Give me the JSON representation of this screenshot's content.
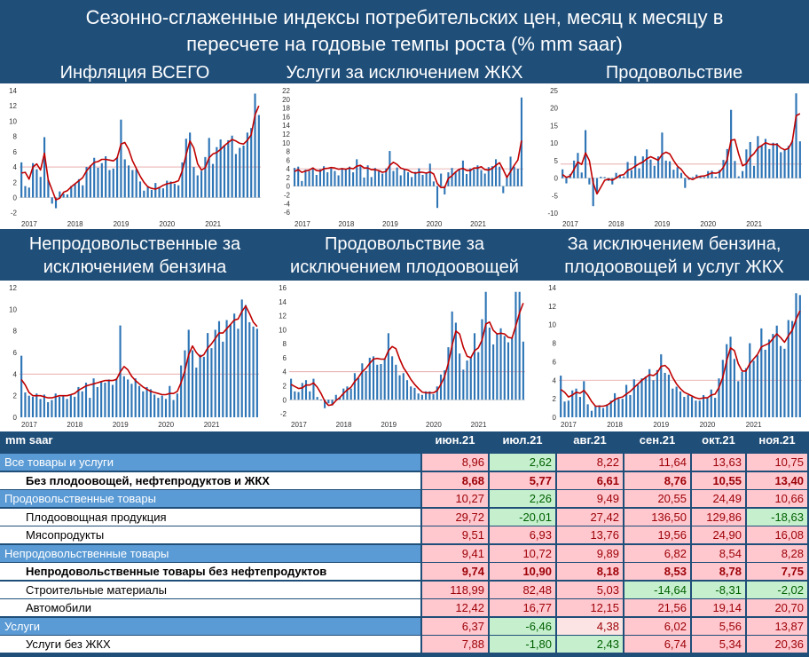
{
  "header": {
    "line1": "Сезонно-сглаженные индексы потребительских цен, месяц к месяцу в",
    "line2": "пересчете на годовые темпы роста (% mm saar)"
  },
  "colors": {
    "bar": "#2e75b6",
    "line": "#c00000",
    "ref": "#e6a0a0",
    "band": "#1f4e79"
  },
  "chart_data": [
    {
      "type": "bar",
      "title": "Инфляция ВСЕГО",
      "x_start": "2017-01",
      "xticks": [
        "2017",
        "2018",
        "2019",
        "2020",
        "2021"
      ],
      "yticks": [
        -2,
        0,
        2,
        4,
        6,
        8,
        10,
        12,
        14
      ],
      "ylim": [
        -2.5,
        14
      ],
      "reference": 4,
      "values": [
        4.6,
        1.5,
        1.3,
        4.5,
        3.7,
        2.7,
        7.9,
        2.3,
        -0.8,
        -1.4,
        0.8,
        0.5,
        0.4,
        1.5,
        1.8,
        2.4,
        1.6,
        4.0,
        4.2,
        5.2,
        3.9,
        4.5,
        5.4,
        3.6,
        3.8,
        5.3,
        10.2,
        5.0,
        4.2,
        3.6,
        3.7,
        2.1,
        0.9,
        1.5,
        1.0,
        1.9,
        1.4,
        1.2,
        2.2,
        2.1,
        1.8,
        1.6,
        4.6,
        7.7,
        8.5,
        4.0,
        2.9,
        3.5,
        5.3,
        7.8,
        4.4,
        6.6,
        7.6,
        6.8,
        7.5,
        8.1,
        5.7,
        6.5,
        6.8,
        8.5,
        9.1,
        13.6,
        10.8
      ],
      "smoothed": [
        3.2,
        3.3,
        2.4,
        4.0,
        4.4,
        3.6,
        5.8,
        2.3,
        1.0,
        -0.3,
        -0.1,
        0.7,
        0.9,
        1.4,
        1.8,
        2.2,
        2.6,
        3.5,
        4.1,
        4.6,
        4.7,
        5.0,
        5.0,
        4.9,
        4.8,
        5.2,
        7.0,
        7.2,
        6.3,
        4.8,
        3.8,
        2.8,
        2.0,
        1.4,
        1.2,
        1.1,
        1.3,
        1.6,
        1.8,
        1.9,
        2.0,
        2.2,
        3.5,
        5.6,
        7.4,
        6.5,
        4.4,
        3.6,
        3.9,
        5.2,
        5.7,
        5.9,
        6.3,
        6.8,
        7.2,
        7.6,
        7.4,
        7.1,
        7.0,
        7.5,
        8.2,
        10.8,
        12.0
      ]
    },
    {
      "type": "bar",
      "title": "Услуги за исключением ЖКХ",
      "x_start": "2017-01",
      "xticks": [
        "2017",
        "2018",
        "2019",
        "2020",
        "2021"
      ],
      "yticks": [
        -6,
        -4,
        -2,
        0,
        2,
        4,
        6,
        8,
        10,
        12,
        14,
        16,
        18,
        20,
        22
      ],
      "ylim": [
        -7,
        22
      ],
      "reference": 4,
      "values": [
        4.2,
        4.5,
        1.2,
        3.8,
        3.5,
        4.3,
        2.6,
        3.9,
        4.6,
        3.2,
        4.1,
        3.5,
        2.5,
        4.2,
        3.9,
        4.5,
        3.2,
        6.2,
        4.6,
        2.0,
        4.8,
        2.1,
        4.2,
        3.4,
        2.9,
        4.1,
        8.1,
        3.5,
        4.3,
        2.5,
        4.0,
        3.2,
        2.1,
        3.3,
        4.1,
        2.6,
        3.1,
        5.2,
        1.1,
        -5.0,
        2.9,
        -1.9,
        3.2,
        4.2,
        3.2,
        4.0,
        5.9,
        2.8,
        4.1,
        3.9,
        4.8,
        3.7,
        2.9,
        4.4,
        4.6,
        6.2,
        4.5,
        -1.6,
        2.5,
        6.8,
        4.5,
        4.0,
        20.4
      ],
      "smoothed": [
        3.4,
        3.8,
        3.2,
        3.5,
        3.7,
        4.2,
        3.6,
        3.5,
        4.0,
        4.1,
        4.3,
        4.2,
        3.9,
        4.0,
        3.9,
        4.2,
        4.0,
        4.6,
        4.8,
        4.2,
        4.2,
        3.8,
        3.8,
        3.6,
        3.2,
        3.4,
        4.8,
        5.5,
        5.0,
        4.2,
        3.9,
        3.7,
        3.2,
        3.0,
        3.2,
        3.2,
        3.0,
        3.3,
        2.8,
        0.6,
        -0.3,
        -0.3,
        1.8,
        2.4,
        3.3,
        3.9,
        4.1,
        3.6,
        3.6,
        4.2,
        4.2,
        4.5,
        3.8,
        3.7,
        4.1,
        4.8,
        5.4,
        3.8,
        2.0,
        3.4,
        4.8,
        6.0,
        10.5
      ]
    },
    {
      "type": "bar",
      "title": "Продовольствие",
      "x_start": "2017-01",
      "xticks": [
        "2017",
        "2018",
        "2019",
        "2020",
        "2021"
      ],
      "yticks": [
        -10,
        -5,
        0,
        5,
        10,
        15,
        20,
        25
      ],
      "ylim": [
        -11,
        25
      ],
      "reference": 4,
      "values": [
        2.5,
        -1.5,
        1.2,
        5.0,
        7.2,
        1.6,
        13.7,
        -1.8,
        -8.0,
        -4.5,
        0.4,
        0.3,
        -0.8,
        -1.8,
        1.5,
        1.0,
        0.5,
        4.6,
        2.3,
        6.3,
        2.8,
        6.2,
        8.2,
        5.3,
        3.5,
        6.2,
        13.0,
        5.0,
        4.8,
        2.4,
        3.1,
        1.5,
        -2.8,
        -0.5,
        0.3,
        1.0,
        0.5,
        0.3,
        2.0,
        2.1,
        0.4,
        2.3,
        5.2,
        8.3,
        19.5,
        4.9,
        0.5,
        2.0,
        8.2,
        10.3,
        3.5,
        12.0,
        9.3,
        11.2,
        8.3,
        10.1,
        10.0,
        7.4,
        8.2,
        9.2,
        10.7,
        24.2,
        10.5
      ],
      "smoothed": [
        1.0,
        0.2,
        0.6,
        2.5,
        4.6,
        3.9,
        7.2,
        5.0,
        -1.4,
        -4.5,
        -2.6,
        -0.6,
        -0.3,
        -0.6,
        0.0,
        0.8,
        1.0,
        2.2,
        2.7,
        3.4,
        4.1,
        4.6,
        5.5,
        6.1,
        5.6,
        5.1,
        6.8,
        7.4,
        6.9,
        5.0,
        3.4,
        2.5,
        1.0,
        0.0,
        -0.4,
        0.2,
        0.5,
        0.6,
        1.0,
        1.5,
        1.4,
        1.7,
        3.1,
        5.3,
        10.8,
        11.0,
        6.8,
        3.5,
        4.1,
        6.0,
        7.0,
        8.6,
        9.3,
        10.1,
        9.7,
        9.6,
        9.6,
        8.6,
        8.1,
        8.5,
        10.5,
        17.8,
        18.4
      ]
    },
    {
      "type": "bar",
      "title": "Непродовольственные за исключением бензина",
      "x_start": "2017-01",
      "xticks": [
        "2017",
        "2018",
        "2019",
        "2020",
        "2021"
      ],
      "yticks": [
        0,
        2,
        4,
        6,
        8,
        10,
        12
      ],
      "ylim": [
        0,
        12
      ],
      "reference": 4,
      "values": [
        5.7,
        2.3,
        2.0,
        1.9,
        2.2,
        1.7,
        2.1,
        1.4,
        1.6,
        2.2,
        1.9,
        2.0,
        1.7,
        2.1,
        1.9,
        2.8,
        2.4,
        3.2,
        1.8,
        3.6,
        2.8,
        3.3,
        3.2,
        3.5,
        3.0,
        3.6,
        8.5,
        3.8,
        3.5,
        3.1,
        3.6,
        2.9,
        2.4,
        2.8,
        2.6,
        2.1,
        1.8,
        2.0,
        1.7,
        2.9,
        1.6,
        2.2,
        4.8,
        6.2,
        8.1,
        6.2,
        4.6,
        5.8,
        5.6,
        7.8,
        6.4,
        8.1,
        8.9,
        7.0,
        9.0,
        8.6,
        9.6,
        8.2,
        10.9,
        10.4,
        8.8,
        8.4,
        8.2
      ],
      "smoothed": [
        3.5,
        3.0,
        2.3,
        2.0,
        2.0,
        2.0,
        1.9,
        1.8,
        1.8,
        1.9,
        2.0,
        2.0,
        2.0,
        2.1,
        2.2,
        2.5,
        2.7,
        2.9,
        3.0,
        3.1,
        3.2,
        3.3,
        3.4,
        3.4,
        3.4,
        3.5,
        4.2,
        4.7,
        4.4,
        3.8,
        3.4,
        3.1,
        2.8,
        2.6,
        2.4,
        2.3,
        2.2,
        2.1,
        2.1,
        2.2,
        2.2,
        2.4,
        3.2,
        4.3,
        5.8,
        6.6,
        6.0,
        5.6,
        5.8,
        6.4,
        6.8,
        7.3,
        7.8,
        7.8,
        8.2,
        8.6,
        9.0,
        9.1,
        9.8,
        10.3,
        9.6,
        8.8,
        8.4
      ]
    },
    {
      "type": "bar",
      "title": "Продовольствие за исключением плодоовощей",
      "x_start": "2017-01",
      "xticks": [
        "2017",
        "2018",
        "2019",
        "2020",
        "2021"
      ],
      "yticks": [
        -2,
        0,
        2,
        4,
        6,
        8,
        10,
        12,
        14,
        16
      ],
      "ylim": [
        -2.5,
        16
      ],
      "reference": 4,
      "values": [
        3.0,
        1.2,
        1.1,
        2.4,
        2.8,
        1.2,
        3.0,
        0.4,
        -0.1,
        -1.2,
        -0.5,
        -0.8,
        0.7,
        0.3,
        1.6,
        1.9,
        1.6,
        3.8,
        3.1,
        5.2,
        4.1,
        6.0,
        6.2,
        5.0,
        5.1,
        5.8,
        9.5,
        6.2,
        5.0,
        3.5,
        3.8,
        2.8,
        1.9,
        1.7,
        0.9,
        0.7,
        1.2,
        1.2,
        0.8,
        1.9,
        3.6,
        4.2,
        7.5,
        12.6,
        11.0,
        6.6,
        4.3,
        5.6,
        6.0,
        9.5,
        6.8,
        11.5,
        15.4,
        10.3,
        7.9,
        9.4,
        10.2,
        9.1,
        8.2,
        8.9,
        15.4,
        15.4,
        8.3
      ],
      "smoothed": [
        2.2,
        1.9,
        1.6,
        1.7,
        2.1,
        2.1,
        2.4,
        1.8,
        0.9,
        -0.2,
        -0.8,
        -0.7,
        -0.1,
        0.3,
        0.9,
        1.4,
        1.8,
        2.6,
        3.2,
        4.0,
        4.5,
        5.2,
        5.8,
        5.9,
        5.8,
        5.8,
        7.0,
        7.6,
        7.3,
        5.8,
        4.6,
        3.8,
        2.9,
        2.2,
        1.6,
        1.1,
        1.0,
        1.0,
        1.0,
        1.3,
        2.2,
        3.3,
        5.2,
        7.8,
        9.8,
        9.4,
        7.5,
        6.2,
        6.0,
        7.0,
        7.4,
        8.5,
        10.8,
        11.1,
        9.9,
        9.4,
        9.5,
        9.4,
        8.9,
        8.8,
        10.5,
        12.4,
        13.8
      ]
    },
    {
      "type": "bar",
      "title": "За исключением бензина, плодоовощей и услуг ЖКХ",
      "x_start": "2017-01",
      "xticks": [
        "2017",
        "2018",
        "2019",
        "2020",
        "2021"
      ],
      "yticks": [
        0,
        2,
        4,
        6,
        8,
        10,
        12,
        14
      ],
      "ylim": [
        0,
        14
      ],
      "reference": 4,
      "values": [
        4.5,
        1.7,
        1.8,
        2.9,
        3.1,
        2.2,
        3.9,
        1.4,
        0.7,
        1.2,
        1.3,
        1.0,
        1.4,
        1.8,
        2.6,
        2.0,
        2.0,
        3.5,
        2.4,
        4.1,
        3.5,
        4.2,
        4.4,
        5.2,
        4.0,
        5.1,
        6.8,
        4.8,
        4.6,
        3.1,
        3.3,
        2.8,
        2.2,
        2.4,
        2.2,
        1.8,
        1.8,
        2.4,
        2.1,
        3.0,
        2.1,
        4.2,
        6.2,
        7.9,
        8.7,
        6.3,
        3.9,
        4.9,
        5.3,
        8.0,
        6.1,
        6.7,
        9.6,
        7.3,
        8.4,
        9.0,
        9.9,
        7.7,
        7.4,
        10.5,
        10.4,
        13.4,
        13.2
      ],
      "smoothed": [
        3.0,
        2.7,
        2.2,
        2.4,
        2.7,
        2.6,
        2.9,
        2.4,
        1.7,
        1.2,
        1.2,
        1.2,
        1.3,
        1.6,
        1.9,
        2.1,
        2.2,
        2.5,
        2.8,
        3.2,
        3.6,
        4.0,
        4.3,
        4.6,
        4.5,
        4.8,
        5.5,
        5.6,
        5.2,
        4.3,
        3.6,
        3.1,
        2.7,
        2.5,
        2.3,
        2.1,
        2.0,
        2.1,
        2.1,
        2.4,
        2.5,
        3.2,
        4.3,
        6.1,
        7.5,
        7.2,
        5.8,
        5.0,
        5.0,
        5.8,
        6.3,
        6.8,
        7.6,
        7.8,
        8.0,
        8.5,
        9.0,
        8.6,
        8.1,
        8.8,
        9.4,
        10.6,
        11.5
      ]
    }
  ],
  "table": {
    "header_label": "mm saar",
    "months": [
      "июн.21",
      "июл.21",
      "авг.21",
      "сен.21",
      "окт.21",
      "ноя.21"
    ],
    "rows": [
      {
        "label": "Все товары и услуги",
        "style": "cat",
        "values": [
          "8,96",
          "2,62",
          "8,22",
          "11,64",
          "13,63",
          "10,75"
        ],
        "colors": [
          "pink",
          "green",
          "pink",
          "pink",
          "pink",
          "pink"
        ]
      },
      {
        "label": "Без плодоовощей, нефтепродуктов и ЖКХ",
        "style": "bold",
        "values": [
          "8,68",
          "5,77",
          "6,61",
          "8,76",
          "10,55",
          "13,40"
        ],
        "colors": [
          "pink",
          "pink",
          "pink",
          "pink",
          "pink",
          "pink"
        ]
      },
      {
        "label": "Продовольственные товары",
        "style": "cat",
        "values": [
          "10,27",
          "2,26",
          "9,49",
          "20,55",
          "24,49",
          "10,66"
        ],
        "colors": [
          "pink",
          "green",
          "pink",
          "pink",
          "pink",
          "pink"
        ]
      },
      {
        "label": "Плодоовощная продукция",
        "style": "sub",
        "values": [
          "29,72",
          "-20,01",
          "27,42",
          "136,50",
          "129,86",
          "-18,63"
        ],
        "colors": [
          "pink",
          "green",
          "pink",
          "pink",
          "pink",
          "green"
        ]
      },
      {
        "label": "Мясопродукты",
        "style": "sub",
        "values": [
          "9,51",
          "6,93",
          "13,76",
          "19,56",
          "24,90",
          "16,08"
        ],
        "colors": [
          "pink",
          "pink",
          "pink",
          "pink",
          "pink",
          "pink"
        ]
      },
      {
        "label": "Непродовольственные товары",
        "style": "cat",
        "values": [
          "9,41",
          "10,72",
          "9,89",
          "6,82",
          "8,54",
          "8,28"
        ],
        "colors": [
          "pink",
          "pink",
          "pink",
          "pink",
          "pink",
          "pink"
        ]
      },
      {
        "label": "Непродовольственные товары без нефтепродуктов",
        "style": "bold",
        "values": [
          "9,74",
          "10,90",
          "8,18",
          "8,53",
          "8,78",
          "7,75"
        ],
        "colors": [
          "pink",
          "pink",
          "pink",
          "pink",
          "pink",
          "pink"
        ]
      },
      {
        "label": "Строительные материалы",
        "style": "sub",
        "values": [
          "118,99",
          "82,48",
          "5,03",
          "-14,64",
          "-8,31",
          "-2,02"
        ],
        "colors": [
          "pink",
          "pink",
          "pink",
          "green",
          "green",
          "green"
        ]
      },
      {
        "label": "Автомобили",
        "style": "sub",
        "values": [
          "12,42",
          "16,77",
          "12,15",
          "21,56",
          "19,14",
          "20,70"
        ],
        "colors": [
          "pink",
          "pink",
          "pink",
          "pink",
          "pink",
          "pink"
        ]
      },
      {
        "label": "Услуги",
        "style": "cat",
        "values": [
          "6,37",
          "-6,46",
          "4,38",
          "6,02",
          "5,56",
          "13,87"
        ],
        "colors": [
          "pink",
          "green",
          "light",
          "pink",
          "pink",
          "pink"
        ]
      },
      {
        "label": "Услуги без ЖКХ",
        "style": "sub",
        "values": [
          "7,88",
          "-1,80",
          "2,43",
          "6,74",
          "5,34",
          "20,36"
        ],
        "colors": [
          "pink",
          "green",
          "green",
          "pink",
          "pink",
          "pink"
        ]
      }
    ]
  }
}
